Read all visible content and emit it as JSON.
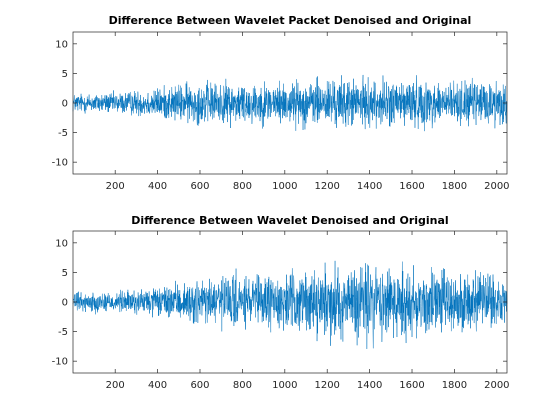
{
  "chart_data": [
    {
      "type": "line",
      "title": "Difference Between Wavelet Packet Denoised and Original",
      "xlabel": "",
      "ylabel": "",
      "xlim": [
        1,
        2048
      ],
      "ylim": [
        -12,
        12
      ],
      "xticks": [
        200,
        400,
        600,
        800,
        1000,
        1200,
        1400,
        1600,
        1800,
        2000
      ],
      "yticks": [
        -10,
        -5,
        0,
        5,
        10
      ],
      "grid": false,
      "legend": "none",
      "line_color": "#0072BD",
      "series": [
        {
          "samples": 2048,
          "amplitude_envelope": {
            "x": [
              1,
              200,
              400,
              500,
              600,
              800,
              1000,
              1100,
              1200,
              1400,
              1600,
              1800,
              2000,
              2048
            ],
            "peak": [
              2.3,
              2.5,
              3.6,
              4.5,
              5.0,
              5.0,
              5.0,
              5.5,
              6.0,
              5.5,
              5.8,
              5.0,
              5.5,
              6.2
            ]
          }
        }
      ]
    },
    {
      "type": "line",
      "title": "Difference Between Wavelet Denoised and Original",
      "xlabel": "",
      "ylabel": "",
      "xlim": [
        1,
        2048
      ],
      "ylim": [
        -12,
        12
      ],
      "xticks": [
        200,
        400,
        600,
        800,
        1000,
        1200,
        1400,
        1600,
        1800,
        2000
      ],
      "yticks": [
        -10,
        -5,
        0,
        5,
        10
      ],
      "grid": false,
      "legend": "none",
      "line_color": "#0072BD",
      "series": [
        {
          "samples": 2048,
          "amplitude_envelope": {
            "x": [
              1,
              200,
              400,
              500,
              600,
              700,
              800,
              1000,
              1200,
              1300,
              1400,
              1500,
              1600,
              1700,
              1800,
              2000,
              2048
            ],
            "peak": [
              2.2,
              2.5,
              3.5,
              4.0,
              5.5,
              6.5,
              6.0,
              6.5,
              8.0,
              9.0,
              10.5,
              9.5,
              10.0,
              8.0,
              7.5,
              6.5,
              6.0
            ]
          }
        }
      ]
    }
  ]
}
